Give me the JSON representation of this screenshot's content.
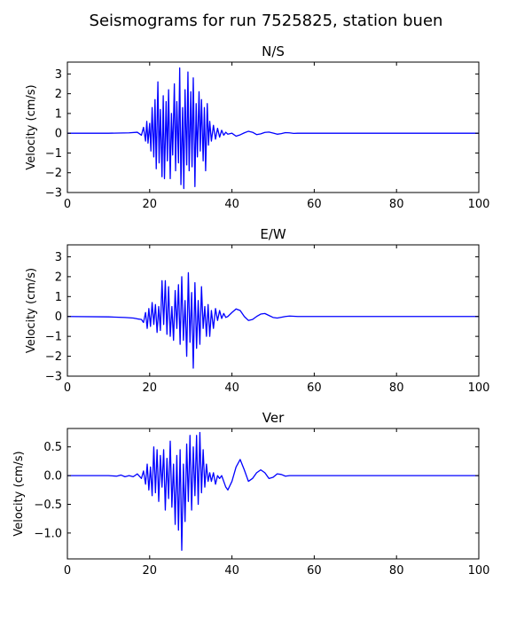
{
  "figure": {
    "suptitle": "Seismograms for run 7525825, station buen"
  },
  "colors": {
    "trace": "#0000ff",
    "axes": "#000000",
    "background": "#ffffff"
  },
  "chart_data": [
    {
      "type": "line",
      "title": "N/S",
      "xlabel": "",
      "ylabel": "Velocity (cm/s)",
      "xlim": [
        0,
        100
      ],
      "ylim": [
        -3,
        3.6
      ],
      "xticks": [
        "0",
        "20",
        "40",
        "60",
        "80",
        "100"
      ],
      "yticks": [
        "3",
        "2",
        "1",
        "0",
        "−1",
        "−2",
        "−3"
      ],
      "ytick_values": [
        3,
        2,
        1,
        0,
        -1,
        -2,
        -3
      ],
      "xtick_values": [
        0,
        20,
        40,
        60,
        80,
        100
      ],
      "grid": false,
      "series": [
        {
          "x": [
            0,
            10,
            15,
            17,
            18,
            18.5,
            19,
            19.3,
            19.6,
            20,
            20.3,
            20.6,
            21,
            21.3,
            21.6,
            22,
            22.3,
            22.6,
            23,
            23.3,
            23.6,
            24,
            24.3,
            24.6,
            25,
            25.3,
            25.6,
            26,
            26.3,
            26.6,
            27,
            27.3,
            27.6,
            28,
            28.3,
            28.6,
            29,
            29.3,
            29.6,
            30,
            30.3,
            30.6,
            31,
            31.3,
            31.6,
            32,
            32.3,
            32.6,
            33,
            33.3,
            33.6,
            34,
            34.3,
            34.6,
            35,
            35.5,
            36,
            36.5,
            37,
            37.5,
            38,
            38.5,
            39,
            40,
            41,
            42,
            43,
            44,
            45,
            46,
            47,
            48,
            49,
            50,
            51,
            52,
            53,
            54,
            55,
            56,
            57,
            60,
            70,
            80,
            90,
            100
          ],
          "y": [
            0,
            0,
            0.02,
            0.05,
            -0.1,
            0.3,
            -0.4,
            0.6,
            -0.5,
            0.5,
            -0.9,
            1.3,
            -1.2,
            1.7,
            -1.8,
            2.6,
            -1.5,
            1.2,
            -2.2,
            1.9,
            -2.3,
            1.6,
            -1.4,
            2.2,
            -2.3,
            1.0,
            -1.1,
            2.5,
            -1.9,
            1.6,
            -1.5,
            3.3,
            -2.6,
            1.3,
            -2.8,
            2.2,
            -1.6,
            3.1,
            -1.9,
            2.1,
            -1.7,
            2.8,
            -2.7,
            1.5,
            -1.2,
            2.1,
            -0.9,
            1.7,
            -1.4,
            1.3,
            -1.9,
            1.5,
            -0.6,
            0.6,
            -0.4,
            0.4,
            -0.3,
            0.25,
            -0.2,
            0.15,
            -0.1,
            0.05,
            -0.05,
            0.0,
            -0.15,
            -0.08,
            0.02,
            0.1,
            0.05,
            -0.07,
            -0.03,
            0.04,
            0.06,
            0.01,
            -0.05,
            -0.02,
            0.03,
            0.02,
            -0.01,
            0.0,
            0.0,
            0,
            0,
            0,
            0,
            0
          ]
        }
      ]
    },
    {
      "type": "line",
      "title": "E/W",
      "xlabel": "",
      "ylabel": "Velocity (cm/s)",
      "xlim": [
        0,
        100
      ],
      "ylim": [
        -3,
        3.6
      ],
      "xticks": [
        "0",
        "20",
        "40",
        "60",
        "80",
        "100"
      ],
      "yticks": [
        "3",
        "2",
        "1",
        "0",
        "−1",
        "−2",
        "−3"
      ],
      "ytick_values": [
        3,
        2,
        1,
        0,
        -1,
        -2,
        -3
      ],
      "xtick_values": [
        0,
        20,
        40,
        60,
        80,
        100
      ],
      "grid": false,
      "series": [
        {
          "x": [
            0,
            10,
            14,
            16,
            17,
            18,
            18.5,
            19,
            19.4,
            19.8,
            20.2,
            20.6,
            21,
            21.4,
            21.8,
            22.2,
            22.6,
            23,
            23.4,
            23.8,
            24.2,
            24.6,
            25,
            25.4,
            25.8,
            26.2,
            26.6,
            27,
            27.4,
            27.8,
            28.2,
            28.6,
            29,
            29.4,
            29.8,
            30.2,
            30.6,
            31,
            31.4,
            31.8,
            32.2,
            32.6,
            33,
            33.4,
            33.8,
            34.2,
            34.6,
            35,
            35.5,
            36,
            36.5,
            37,
            37.5,
            38,
            38.5,
            39,
            40,
            41,
            42,
            43,
            44,
            45,
            46,
            47,
            48,
            49,
            50,
            51,
            52,
            53,
            54,
            55,
            56,
            58,
            60,
            70,
            80,
            90,
            100
          ],
          "y": [
            0,
            -0.02,
            -0.05,
            -0.08,
            -0.12,
            -0.15,
            -0.3,
            0.2,
            -0.6,
            0.4,
            -0.5,
            0.7,
            -0.4,
            0.6,
            -0.8,
            0.5,
            -0.7,
            1.8,
            -0.4,
            1.8,
            -0.9,
            1.5,
            -1.0,
            0.5,
            -1.2,
            1.3,
            -0.6,
            1.6,
            -1.4,
            2.0,
            -1.2,
            0.8,
            -2.0,
            2.2,
            -1.3,
            1.2,
            -2.6,
            1.7,
            -1.6,
            0.8,
            -1.4,
            1.5,
            -0.6,
            0.5,
            -1.0,
            0.6,
            -1.0,
            0.3,
            -0.6,
            0.4,
            -0.2,
            0.3,
            -0.1,
            0.15,
            -0.05,
            0.0,
            0.2,
            0.38,
            0.3,
            0.0,
            -0.2,
            -0.15,
            0.0,
            0.12,
            0.15,
            0.05,
            -0.05,
            -0.08,
            -0.04,
            0.0,
            0.02,
            0.01,
            0.0,
            0.0,
            0,
            0,
            0,
            0,
            0
          ]
        }
      ]
    },
    {
      "type": "line",
      "title": "Ver",
      "xlabel": "",
      "ylabel": "Velocity (cm/s)",
      "xlim": [
        0,
        100
      ],
      "ylim": [
        -1.45,
        0.82
      ],
      "xticks": [
        "0",
        "20",
        "40",
        "60",
        "80",
        "100"
      ],
      "yticks": [
        "0.5",
        "0.0",
        "−0.5",
        "−1.0"
      ],
      "ytick_values": [
        0.5,
        0.0,
        -0.5,
        -1.0
      ],
      "xtick_values": [
        0,
        20,
        40,
        60,
        80,
        100
      ],
      "grid": false,
      "series": [
        {
          "x": [
            0,
            10,
            12,
            13,
            14,
            15,
            16,
            17,
            18,
            18.5,
            19,
            19.4,
            19.8,
            20.2,
            20.6,
            21,
            21.4,
            21.8,
            22.2,
            22.6,
            23,
            23.4,
            23.8,
            24.2,
            24.6,
            25,
            25.4,
            25.8,
            26.2,
            26.6,
            27,
            27.4,
            27.8,
            28.2,
            28.6,
            29,
            29.4,
            29.8,
            30.2,
            30.6,
            31,
            31.4,
            31.8,
            32.2,
            32.6,
            33,
            33.4,
            33.8,
            34.2,
            34.6,
            35,
            35.5,
            36,
            36.5,
            37,
            37.5,
            38,
            38.5,
            39,
            40,
            41,
            42,
            43,
            44,
            45,
            46,
            47,
            48,
            49,
            50,
            51,
            52,
            53,
            54,
            55,
            56,
            57,
            58,
            60,
            70,
            80,
            90,
            100
          ],
          "y": [
            0,
            0,
            -0.01,
            0.01,
            -0.02,
            0.0,
            -0.02,
            0.03,
            -0.05,
            0.08,
            -0.15,
            0.2,
            -0.25,
            0.15,
            -0.35,
            0.5,
            -0.3,
            0.45,
            -0.45,
            0.35,
            -0.2,
            0.45,
            -0.6,
            0.3,
            -0.4,
            0.6,
            -0.55,
            0.2,
            -0.85,
            0.35,
            -0.95,
            0.45,
            -1.3,
            0.2,
            -0.8,
            0.55,
            -0.45,
            0.7,
            -0.6,
            0.5,
            -0.35,
            0.7,
            -0.5,
            0.75,
            -0.3,
            0.45,
            -0.2,
            0.2,
            -0.1,
            0.05,
            -0.1,
            0.05,
            -0.15,
            0.0,
            -0.05,
            0.0,
            -0.1,
            -0.2,
            -0.25,
            -0.1,
            0.15,
            0.28,
            0.1,
            -0.1,
            -0.05,
            0.05,
            0.1,
            0.05,
            -0.05,
            -0.03,
            0.03,
            0.02,
            -0.01,
            0.0,
            0.0,
            0.0,
            0,
            0,
            0,
            0,
            0,
            0,
            0
          ]
        }
      ]
    }
  ]
}
